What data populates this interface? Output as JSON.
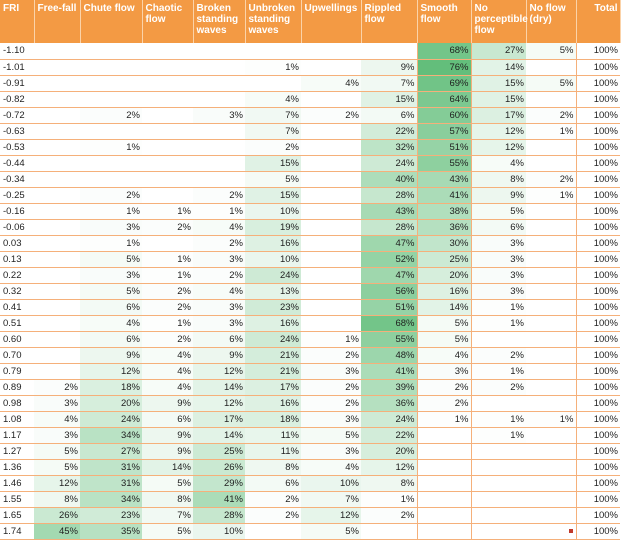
{
  "chart_data": {
    "type": "table",
    "columns": [
      "FRI",
      "Free-fall",
      "Chute flow",
      "Chaotic flow",
      "Broken standing waves",
      "Unbroken standing waves",
      "Upwellings",
      "Rippled flow",
      "Smooth flow",
      "No perceptible flow",
      "No flow (dry)",
      "Total"
    ],
    "rows": [
      [
        "-1.10",
        "",
        "",
        "",
        "",
        "",
        "",
        "",
        "68%",
        "27%",
        "5%",
        "100%"
      ],
      [
        "-1.01",
        "",
        "",
        "",
        "",
        "1%",
        "",
        "9%",
        "76%",
        "14%",
        "",
        "100%"
      ],
      [
        "-0.91",
        "",
        "",
        "",
        "",
        "",
        "4%",
        "7%",
        "69%",
        "15%",
        "5%",
        "100%"
      ],
      [
        "-0.82",
        "",
        "",
        "",
        "",
        "4%",
        "",
        "15%",
        "64%",
        "15%",
        "",
        "100%"
      ],
      [
        "-0.72",
        "",
        "2%",
        "",
        "3%",
        "7%",
        "2%",
        "6%",
        "60%",
        "17%",
        "2%",
        "100%"
      ],
      [
        "-0.63",
        "",
        "",
        "",
        "",
        "7%",
        "",
        "22%",
        "57%",
        "12%",
        "1%",
        "100%"
      ],
      [
        "-0.53",
        "",
        "1%",
        "",
        "",
        "2%",
        "",
        "32%",
        "51%",
        "12%",
        "",
        "100%"
      ],
      [
        "-0.44",
        "",
        "",
        "",
        "",
        "15%",
        "",
        "24%",
        "55%",
        "4%",
        "",
        "100%"
      ],
      [
        "-0.34",
        "",
        "",
        "",
        "",
        "5%",
        "",
        "40%",
        "43%",
        "8%",
        "2%",
        "100%"
      ],
      [
        "-0.25",
        "",
        "2%",
        "",
        "2%",
        "15%",
        "",
        "28%",
        "41%",
        "9%",
        "1%",
        "100%"
      ],
      [
        "-0.16",
        "",
        "1%",
        "1%",
        "1%",
        "10%",
        "",
        "43%",
        "38%",
        "5%",
        "",
        "100%"
      ],
      [
        "-0.06",
        "",
        "3%",
        "2%",
        "4%",
        "19%",
        "",
        "28%",
        "36%",
        "6%",
        "",
        "100%"
      ],
      [
        "0.03",
        "",
        "1%",
        "",
        "2%",
        "16%",
        "",
        "47%",
        "30%",
        "3%",
        "",
        "100%"
      ],
      [
        "0.13",
        "",
        "5%",
        "1%",
        "3%",
        "10%",
        "",
        "52%",
        "25%",
        "3%",
        "",
        "100%"
      ],
      [
        "0.22",
        "",
        "3%",
        "1%",
        "2%",
        "24%",
        "",
        "47%",
        "20%",
        "3%",
        "",
        "100%"
      ],
      [
        "0.32",
        "",
        "5%",
        "2%",
        "4%",
        "13%",
        "",
        "56%",
        "16%",
        "3%",
        "",
        "100%"
      ],
      [
        "0.41",
        "",
        "6%",
        "2%",
        "3%",
        "23%",
        "",
        "51%",
        "14%",
        "1%",
        "",
        "100%"
      ],
      [
        "0.51",
        "",
        "4%",
        "1%",
        "3%",
        "16%",
        "",
        "68%",
        "5%",
        "1%",
        "",
        "100%"
      ],
      [
        "0.60",
        "",
        "6%",
        "2%",
        "6%",
        "24%",
        "1%",
        "55%",
        "5%",
        "",
        "",
        "100%"
      ],
      [
        "0.70",
        "",
        "9%",
        "4%",
        "9%",
        "21%",
        "2%",
        "48%",
        "4%",
        "2%",
        "",
        "100%"
      ],
      [
        "0.79",
        "",
        "12%",
        "4%",
        "12%",
        "21%",
        "3%",
        "41%",
        "3%",
        "1%",
        "",
        "100%"
      ],
      [
        "0.89",
        "2%",
        "18%",
        "4%",
        "14%",
        "17%",
        "2%",
        "39%",
        "2%",
        "2%",
        "",
        "100%"
      ],
      [
        "0.98",
        "3%",
        "20%",
        "9%",
        "12%",
        "16%",
        "2%",
        "36%",
        "2%",
        "",
        "",
        "100%"
      ],
      [
        "1.08",
        "4%",
        "24%",
        "6%",
        "17%",
        "18%",
        "3%",
        "24%",
        "1%",
        "1%",
        "1%",
        "100%"
      ],
      [
        "1.17",
        "3%",
        "34%",
        "9%",
        "14%",
        "11%",
        "5%",
        "22%",
        "",
        "1%",
        "",
        "100%"
      ],
      [
        "1.27",
        "5%",
        "27%",
        "9%",
        "25%",
        "11%",
        "3%",
        "20%",
        "",
        "",
        "",
        "100%"
      ],
      [
        "1.36",
        "5%",
        "31%",
        "14%",
        "26%",
        "8%",
        "4%",
        "12%",
        "",
        "",
        "",
        "100%"
      ],
      [
        "1.46",
        "12%",
        "31%",
        "5%",
        "29%",
        "6%",
        "10%",
        "8%",
        "",
        "",
        "",
        "100%"
      ],
      [
        "1.55",
        "8%",
        "34%",
        "8%",
        "41%",
        "2%",
        "7%",
        "1%",
        "",
        "",
        "",
        "100%"
      ],
      [
        "1.65",
        "26%",
        "23%",
        "7%",
        "28%",
        "2%",
        "12%",
        "2%",
        "",
        "",
        "",
        "100%"
      ],
      [
        "1.74",
        "45%",
        "35%",
        "5%",
        "10%",
        "",
        "5%",
        "",
        "",
        "",
        "",
        "100%"
      ]
    ],
    "heatmap": {
      "low_color": "#ffffff",
      "high_color": "#63be7b",
      "range": [
        0,
        76
      ]
    },
    "header_color": "#f39a44",
    "grid": true
  }
}
